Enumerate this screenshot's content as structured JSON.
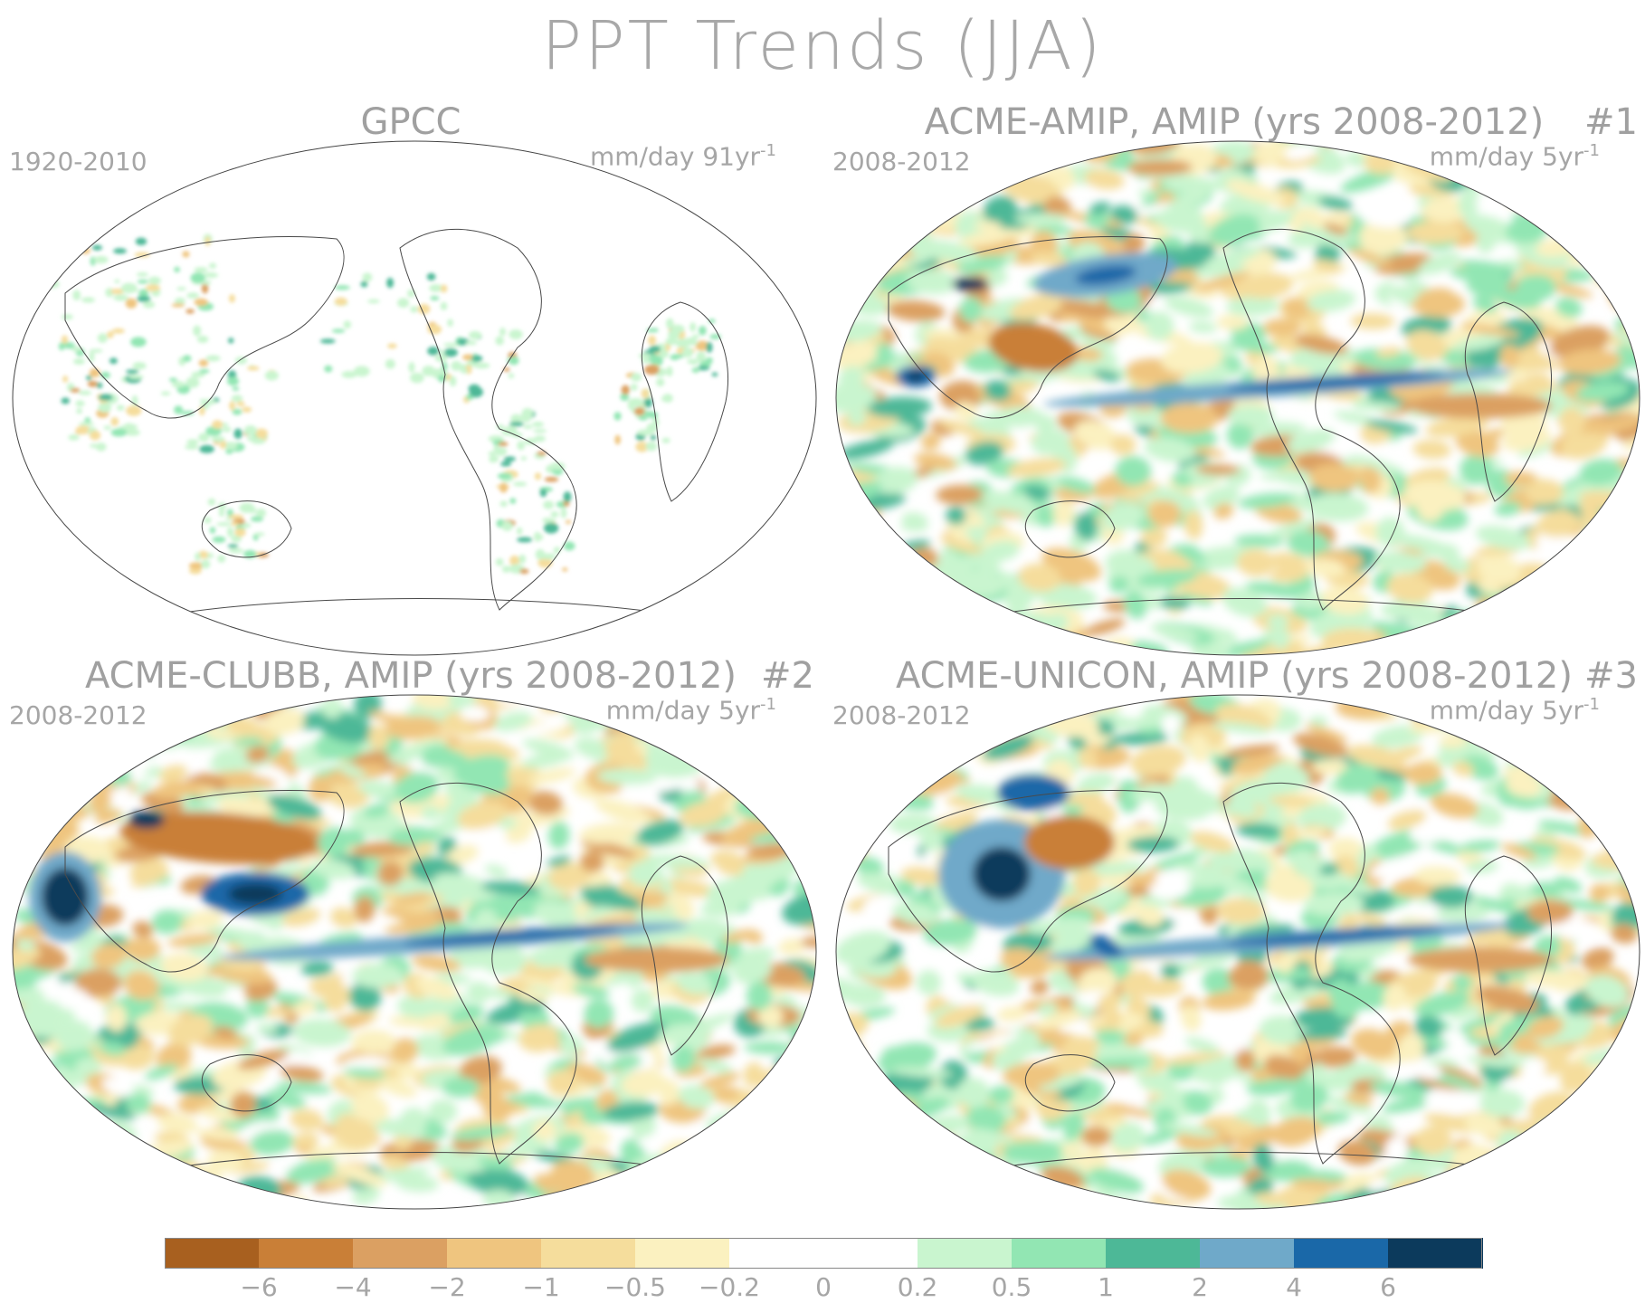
{
  "title": "PPT Trends (JJA)",
  "panels": [
    {
      "title": "GPCC",
      "num": "",
      "years": "1920-2010",
      "units": "mm/day 91yr",
      "sup": "-1",
      "style": "obs"
    },
    {
      "title": "ACME-AMIP, AMIP (yrs 2008-2012)",
      "num": "#1",
      "years": "2008-2012",
      "units": "mm/day 5yr",
      "sup": "-1",
      "style": "m1"
    },
    {
      "title": "ACME-CLUBB, AMIP (yrs 2008-2012)",
      "num": "#2",
      "years": "2008-2012",
      "units": "mm/day 5yr",
      "sup": "-1",
      "style": "m2"
    },
    {
      "title": "ACME-UNICON, AMIP (yrs 2008-2012)",
      "num": "#3",
      "years": "2008-2012",
      "units": "mm/day 5yr",
      "sup": "-1",
      "style": "m3"
    }
  ],
  "colorbar": {
    "colors": [
      "#a8601f",
      "#c97f37",
      "#dba062",
      "#efc57f",
      "#f5dd9c",
      "#fbf1c0",
      "#ffffff",
      "#ffffff",
      "#c9f5cf",
      "#92e6b3",
      "#4db897",
      "#6fa9c9",
      "#1a68a8",
      "#0c3a5c"
    ],
    "labels": [
      "-6",
      "-4",
      "-2",
      "-1",
      "-0.5",
      "-0.2",
      "0",
      "0.2",
      "0.5",
      "1",
      "2",
      "4",
      "6"
    ]
  }
}
